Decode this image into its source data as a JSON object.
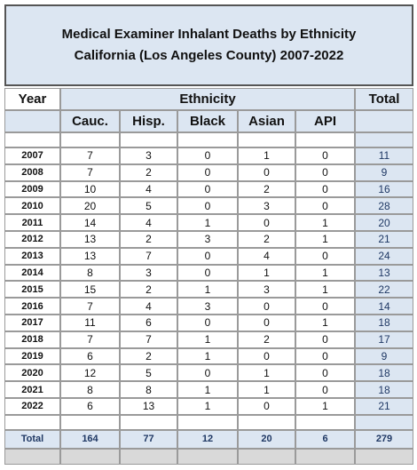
{
  "title": [
    "Medical Examiner Inhalant Deaths by Ethnicity",
    "California (Los Angeles County) 2007-2022"
  ],
  "header": {
    "year": "Year",
    "group": "Ethnicity",
    "total": "Total"
  },
  "columns": [
    "Cauc.",
    "Hisp.",
    "Black",
    "Asian",
    "API"
  ],
  "rows": [
    {
      "year": "2007",
      "values": [
        7,
        3,
        0,
        1,
        0
      ],
      "total": 11
    },
    {
      "year": "2008",
      "values": [
        7,
        2,
        0,
        0,
        0
      ],
      "total": 9
    },
    {
      "year": "2009",
      "values": [
        10,
        4,
        0,
        2,
        0
      ],
      "total": 16
    },
    {
      "year": "2010",
      "values": [
        20,
        5,
        0,
        3,
        0
      ],
      "total": 28
    },
    {
      "year": "2011",
      "values": [
        14,
        4,
        1,
        0,
        1
      ],
      "total": 20
    },
    {
      "year": "2012",
      "values": [
        13,
        2,
        3,
        2,
        1
      ],
      "total": 21
    },
    {
      "year": "2013",
      "values": [
        13,
        7,
        0,
        4,
        0
      ],
      "total": 24
    },
    {
      "year": "2014",
      "values": [
        8,
        3,
        0,
        1,
        1
      ],
      "total": 13
    },
    {
      "year": "2015",
      "values": [
        15,
        2,
        1,
        3,
        1
      ],
      "total": 22
    },
    {
      "year": "2016",
      "values": [
        7,
        4,
        3,
        0,
        0
      ],
      "total": 14
    },
    {
      "year": "2017",
      "values": [
        11,
        6,
        0,
        0,
        1
      ],
      "total": 18
    },
    {
      "year": "2018",
      "values": [
        7,
        7,
        1,
        2,
        0
      ],
      "total": 17
    },
    {
      "year": "2019",
      "values": [
        6,
        2,
        1,
        0,
        0
      ],
      "total": 9
    },
    {
      "year": "2020",
      "values": [
        12,
        5,
        0,
        1,
        0
      ],
      "total": 18
    },
    {
      "year": "2021",
      "values": [
        8,
        8,
        1,
        1,
        0
      ],
      "total": 18
    },
    {
      "year": "2022",
      "values": [
        6,
        13,
        1,
        0,
        1
      ],
      "total": 21
    }
  ],
  "totals": {
    "label": "Total",
    "values": [
      164,
      77,
      12,
      20,
      6
    ],
    "total": 279
  }
}
